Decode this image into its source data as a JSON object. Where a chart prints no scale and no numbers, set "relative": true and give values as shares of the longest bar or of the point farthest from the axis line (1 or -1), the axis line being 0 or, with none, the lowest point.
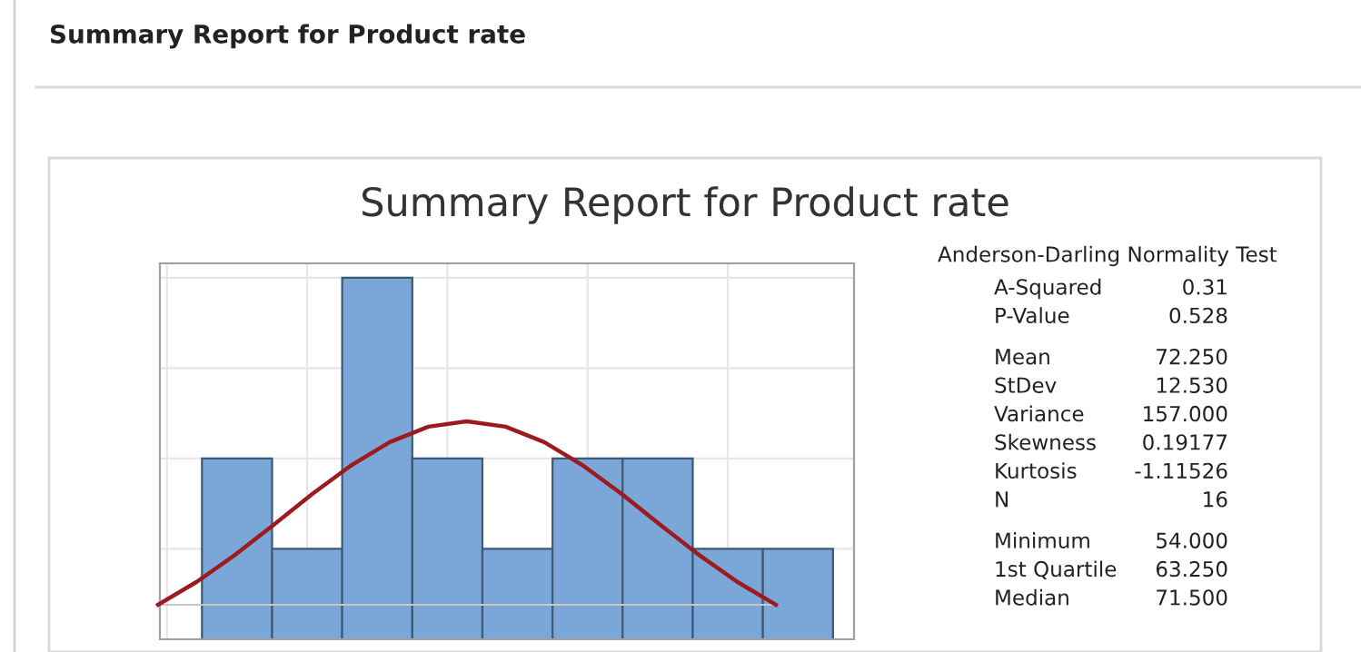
{
  "chart_data": [
    {
      "type": "bar",
      "title": "Summary Report for Product rate",
      "relative": true,
      "grid": true,
      "annotations": [
        "Summary Report for Product rate"
      ],
      "categories": [
        null,
        null,
        null,
        null,
        null,
        null,
        null,
        null,
        null
      ],
      "series": [
        {
          "color": "#7ba6d8",
          "values": [
            0.5,
            0.25,
            1,
            0.5,
            0.25,
            0.5,
            0.5,
            0.25,
            0.25
          ]
        }
      ]
    },
    {
      "type": "line",
      "relative": true,
      "categories": [
        null,
        null,
        null,
        null,
        null,
        null,
        null,
        null,
        null,
        null,
        null,
        null,
        null,
        null,
        null,
        null,
        null
      ],
      "series": [
        {
          "color": "#9b1b1f",
          "values": [
            0,
            0.125,
            0.273,
            0.437,
            0.605,
            0.76,
            0.887,
            0.971,
            1,
            0.971,
            0.887,
            0.76,
            0.605,
            0.437,
            0.273,
            0.125,
            0
          ]
        }
      ]
    },
    {
      "type": "other",
      "title": "Anderson-Darling Normality Test",
      "annotations": [
        "A-Squared",
        "0.31",
        "P-Value",
        "0.528",
        "Mean",
        "72.250",
        "StDev",
        "12.530",
        "Variance",
        "157.000",
        "Skewness",
        "0.19177",
        "Kurtosis",
        "-1.11526",
        "N",
        "16",
        "Minimum",
        "54.000",
        "1st Quartile",
        "63.250",
        "Median",
        "71.500"
      ]
    }
  ]
}
